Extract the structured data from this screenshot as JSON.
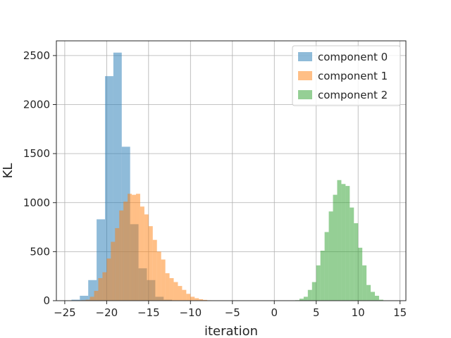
{
  "chart_data": {
    "type": "histogram",
    "xlabel": "iteration",
    "ylabel": "KL",
    "xlim": [
      -26,
      15.7
    ],
    "ylim": [
      0,
      2650
    ],
    "xticks": [
      -25,
      -20,
      -15,
      -10,
      -5,
      0,
      5,
      10,
      15
    ],
    "yticks": [
      0,
      500,
      1000,
      1500,
      2000,
      2500
    ],
    "grid": true,
    "legend_position": "top-right",
    "series": [
      {
        "name": "component 0",
        "color": "#1f77b4",
        "opacity": 0.5,
        "bins": [
          {
            "x0": -24.2,
            "x1": -23.2,
            "count": 10
          },
          {
            "x0": -23.2,
            "x1": -22.2,
            "count": 50
          },
          {
            "x0": -22.2,
            "x1": -21.2,
            "count": 210
          },
          {
            "x0": -21.2,
            "x1": -20.2,
            "count": 830
          },
          {
            "x0": -20.2,
            "x1": -19.2,
            "count": 2290
          },
          {
            "x0": -19.2,
            "x1": -18.2,
            "count": 2530
          },
          {
            "x0": -18.2,
            "x1": -17.2,
            "count": 1570
          },
          {
            "x0": -17.2,
            "x1": -16.2,
            "count": 780
          },
          {
            "x0": -16.2,
            "x1": -15.2,
            "count": 330
          },
          {
            "x0": -15.2,
            "x1": -14.2,
            "count": 210
          },
          {
            "x0": -14.2,
            "x1": -13.2,
            "count": 40
          },
          {
            "x0": -13.2,
            "x1": -12.2,
            "count": 10
          }
        ]
      },
      {
        "name": "component 1",
        "color": "#ff7f0e",
        "opacity": 0.5,
        "bins": [
          {
            "x0": -23.0,
            "x1": -22.5,
            "count": 5
          },
          {
            "x0": -22.5,
            "x1": -22.0,
            "count": 10
          },
          {
            "x0": -22.0,
            "x1": -21.5,
            "count": 40
          },
          {
            "x0": -21.5,
            "x1": -21.0,
            "count": 100
          },
          {
            "x0": -21.0,
            "x1": -20.5,
            "count": 230
          },
          {
            "x0": -20.5,
            "x1": -20.0,
            "count": 290
          },
          {
            "x0": -20.0,
            "x1": -19.5,
            "count": 430
          },
          {
            "x0": -19.5,
            "x1": -19.0,
            "count": 600
          },
          {
            "x0": -19.0,
            "x1": -18.5,
            "count": 740
          },
          {
            "x0": -18.5,
            "x1": -18.0,
            "count": 920
          },
          {
            "x0": -18.0,
            "x1": -17.5,
            "count": 1010
          },
          {
            "x0": -17.5,
            "x1": -17.0,
            "count": 1090
          },
          {
            "x0": -17.0,
            "x1": -16.5,
            "count": 1080
          },
          {
            "x0": -16.5,
            "x1": -16.0,
            "count": 1090
          },
          {
            "x0": -16.0,
            "x1": -15.5,
            "count": 960
          },
          {
            "x0": -15.5,
            "x1": -15.0,
            "count": 880
          },
          {
            "x0": -15.0,
            "x1": -14.5,
            "count": 760
          },
          {
            "x0": -14.5,
            "x1": -14.0,
            "count": 620
          },
          {
            "x0": -14.0,
            "x1": -13.5,
            "count": 500
          },
          {
            "x0": -13.5,
            "x1": -13.0,
            "count": 420
          },
          {
            "x0": -13.0,
            "x1": -12.5,
            "count": 280
          },
          {
            "x0": -12.5,
            "x1": -12.0,
            "count": 230
          },
          {
            "x0": -12.0,
            "x1": -11.5,
            "count": 190
          },
          {
            "x0": -11.5,
            "x1": -11.0,
            "count": 150
          },
          {
            "x0": -11.0,
            "x1": -10.5,
            "count": 110
          },
          {
            "x0": -10.5,
            "x1": -10.0,
            "count": 70
          },
          {
            "x0": -10.0,
            "x1": -9.5,
            "count": 40
          },
          {
            "x0": -9.5,
            "x1": -9.0,
            "count": 25
          },
          {
            "x0": -9.0,
            "x1": -8.5,
            "count": 15
          },
          {
            "x0": -8.5,
            "x1": -8.0,
            "count": 8
          },
          {
            "x0": -8.0,
            "x1": -7.5,
            "count": 4
          }
        ]
      },
      {
        "name": "component 2",
        "color": "#2ca02c",
        "opacity": 0.5,
        "bins": [
          {
            "x0": 2.5,
            "x1": 3.0,
            "count": 5
          },
          {
            "x0": 3.0,
            "x1": 3.5,
            "count": 20
          },
          {
            "x0": 3.5,
            "x1": 4.0,
            "count": 40
          },
          {
            "x0": 4.0,
            "x1": 4.5,
            "count": 110
          },
          {
            "x0": 4.5,
            "x1": 5.0,
            "count": 190
          },
          {
            "x0": 5.0,
            "x1": 5.5,
            "count": 360
          },
          {
            "x0": 5.5,
            "x1": 6.0,
            "count": 510
          },
          {
            "x0": 6.0,
            "x1": 6.5,
            "count": 700
          },
          {
            "x0": 6.5,
            "x1": 7.0,
            "count": 910
          },
          {
            "x0": 7.0,
            "x1": 7.5,
            "count": 1080
          },
          {
            "x0": 7.5,
            "x1": 8.0,
            "count": 1230
          },
          {
            "x0": 8.0,
            "x1": 8.5,
            "count": 1190
          },
          {
            "x0": 8.5,
            "x1": 9.0,
            "count": 1170
          },
          {
            "x0": 9.0,
            "x1": 9.5,
            "count": 950
          },
          {
            "x0": 9.5,
            "x1": 10.0,
            "count": 790
          },
          {
            "x0": 10.0,
            "x1": 10.5,
            "count": 540
          },
          {
            "x0": 10.5,
            "x1": 11.0,
            "count": 360
          },
          {
            "x0": 11.0,
            "x1": 11.5,
            "count": 160
          },
          {
            "x0": 11.5,
            "x1": 12.0,
            "count": 90
          },
          {
            "x0": 12.0,
            "x1": 12.5,
            "count": 50
          },
          {
            "x0": 12.5,
            "x1": 13.0,
            "count": 10
          }
        ]
      }
    ]
  }
}
